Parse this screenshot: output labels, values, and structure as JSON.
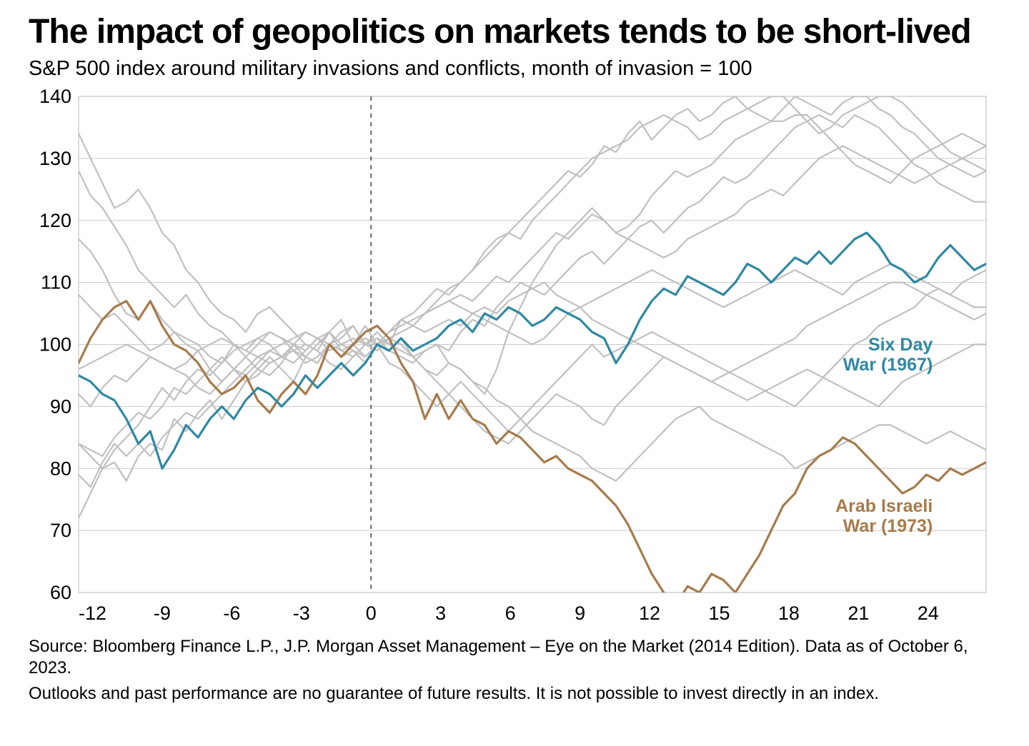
{
  "title": "The impact of geopolitics on markets tends to be short-lived",
  "subtitle": "S&P 500 index around military invasions and conflicts, month of invasion = 100",
  "source_line1": "Source: Bloomberg Finance L.P., J.P. Morgan Asset Management – Eye on the Market (2014 Edition). Data as of October 6, 2023.",
  "source_line2": "Outlooks and past performance are no guarantee of future results. It is not possible to invest directly in an index.",
  "chart": {
    "type": "line",
    "xlim": [
      -12.6,
      26.5
    ],
    "ylim": [
      60,
      140
    ],
    "xticks": [
      -12,
      -9,
      -6,
      -3,
      0,
      3,
      6,
      9,
      12,
      15,
      18,
      21,
      24
    ],
    "yticks": [
      60,
      70,
      80,
      90,
      100,
      110,
      120,
      130,
      140
    ],
    "tick_fontsize": 27,
    "title_fontsize": 48,
    "subtitle_fontsize": 29,
    "source_fontsize": 24,
    "background_color": "#ffffff",
    "plot_border_color": "#b8b8b8",
    "grid_color": "#c9c9c9",
    "zero_line_color": "#666666",
    "zero_line_dash": "6,6",
    "grey_line_color": "#c0c0c0",
    "grey_line_width": 2.2,
    "hl_line_width": 3.2,
    "series_six_day": {
      "color": "#2f88a3",
      "label": "Six Day\nWar (1967)",
      "label_pos": {
        "x": 24.2,
        "y": 99
      },
      "values": [
        95,
        94,
        92,
        91,
        88,
        84,
        86,
        80,
        83,
        87,
        85,
        88,
        90,
        88,
        91,
        93,
        92,
        90,
        92,
        95,
        93,
        95,
        97,
        95,
        97,
        100,
        99,
        101,
        99,
        100,
        101,
        103,
        104,
        102,
        105,
        104,
        106,
        105,
        103,
        104,
        106,
        105,
        104,
        102,
        101,
        97,
        100,
        104,
        107,
        109,
        108,
        111,
        110,
        109,
        108,
        110,
        113,
        112,
        110,
        112,
        114,
        113,
        115,
        113,
        115,
        117,
        118,
        116,
        113,
        112,
        110,
        111,
        114,
        116,
        114,
        112,
        113
      ]
    },
    "series_arab_israeli": {
      "color": "#a77b4b",
      "label": "Arab Israeli\nWar (1973)",
      "label_pos": {
        "x": 24.2,
        "y": 73
      },
      "values": [
        97,
        101,
        104,
        106,
        107,
        104,
        107,
        103,
        100,
        99,
        97,
        94,
        92,
        93,
        95,
        91,
        89,
        92,
        94,
        92,
        95,
        100,
        98,
        100,
        102,
        103,
        101,
        97,
        94,
        88,
        92,
        88,
        91,
        88,
        87,
        84,
        86,
        85,
        83,
        81,
        82,
        80,
        79,
        78,
        76,
        74,
        71,
        67,
        63,
        60,
        58,
        61,
        60,
        63,
        62,
        60,
        63,
        66,
        70,
        74,
        76,
        80,
        82,
        83,
        85,
        84,
        82,
        80,
        78,
        76,
        77,
        79,
        78,
        80,
        79,
        80,
        81
      ]
    },
    "grey_series": [
      [
        117,
        115,
        112,
        108,
        105,
        104,
        107,
        104,
        102,
        100,
        99,
        96,
        94,
        96,
        98,
        96,
        95,
        97,
        100,
        98,
        97,
        100,
        101,
        103,
        100,
        102,
        100,
        104,
        105,
        107,
        109,
        108,
        110,
        112,
        115,
        117,
        118,
        120,
        122,
        124,
        126,
        128,
        127,
        129,
        132,
        131,
        134,
        136,
        133,
        135,
        137,
        138,
        136,
        137,
        139,
        140,
        138,
        137,
        136,
        138,
        140,
        139,
        138,
        137,
        139,
        140,
        140,
        138,
        137,
        135,
        134,
        132,
        130,
        129,
        128,
        127,
        128
      ],
      [
        72,
        76,
        80,
        81,
        78,
        82,
        84,
        83,
        88,
        86,
        89,
        91,
        88,
        91,
        94,
        96,
        98,
        96,
        94,
        98,
        97,
        100,
        98,
        99,
        97,
        100,
        102,
        104,
        103,
        105,
        107,
        109,
        110,
        112,
        114,
        116,
        118,
        117,
        120,
        122,
        124,
        126,
        128,
        130,
        131,
        132,
        133,
        135,
        136,
        137,
        136,
        135,
        133,
        134,
        136,
        137,
        138,
        139,
        140,
        140,
        138,
        136,
        134,
        135,
        137,
        138,
        139,
        140,
        140,
        139,
        137,
        135,
        133,
        131,
        130,
        129,
        128
      ],
      [
        84,
        82,
        80,
        83,
        85,
        87,
        90,
        93,
        91,
        94,
        96,
        95,
        97,
        100,
        99,
        101,
        100,
        98,
        97,
        99,
        101,
        100,
        102,
        103,
        100,
        101,
        99,
        98,
        97,
        99,
        100,
        97,
        96,
        94,
        92,
        96,
        102,
        106,
        110,
        113,
        116,
        118,
        120,
        122,
        120,
        118,
        119,
        121,
        124,
        126,
        128,
        127,
        128,
        129,
        131,
        133,
        134,
        135,
        136,
        136,
        137,
        137,
        135,
        133,
        131,
        129,
        128,
        127,
        126,
        128,
        130,
        131,
        132,
        133,
        134,
        133,
        132
      ],
      [
        134,
        130,
        126,
        122,
        123,
        125,
        122,
        118,
        116,
        112,
        110,
        107,
        105,
        104,
        102,
        105,
        106,
        104,
        102,
        100,
        99,
        102,
        104,
        100,
        103,
        100,
        99,
        101,
        98,
        99,
        100,
        99,
        102,
        104,
        103,
        106,
        108,
        110,
        109,
        108,
        110,
        112,
        114,
        115,
        113,
        115,
        117,
        119,
        120,
        118,
        120,
        122,
        123,
        125,
        127,
        126,
        127,
        129,
        131,
        133,
        135,
        136,
        137,
        136,
        135,
        137,
        136,
        135,
        133,
        131,
        129,
        128,
        126,
        125,
        124,
        123,
        123
      ],
      [
        84,
        83,
        82,
        85,
        87,
        89,
        88,
        90,
        93,
        92,
        94,
        96,
        98,
        96,
        94,
        95,
        97,
        98,
        99,
        97,
        98,
        100,
        99,
        98,
        100,
        100,
        101,
        102,
        103,
        102,
        103,
        104,
        103,
        105,
        106,
        105,
        107,
        108,
        109,
        110,
        108,
        107,
        106,
        104,
        103,
        102,
        101,
        100,
        99,
        98,
        97,
        96,
        95,
        94,
        95,
        96,
        97,
        98,
        99,
        100,
        101,
        103,
        104,
        105,
        106,
        107,
        108,
        109,
        110,
        110,
        109,
        108,
        107,
        106,
        105,
        104,
        105
      ],
      [
        128,
        124,
        122,
        119,
        116,
        112,
        110,
        108,
        106,
        108,
        105,
        103,
        102,
        100,
        98,
        100,
        102,
        101,
        99,
        98,
        100,
        102,
        99,
        100,
        98,
        100,
        97,
        96,
        94,
        92,
        90,
        92,
        94,
        92,
        90,
        88,
        86,
        88,
        90,
        92,
        94,
        96,
        98,
        100,
        98,
        99,
        100,
        101,
        102,
        101,
        100,
        99,
        98,
        97,
        96,
        95,
        94,
        93,
        92,
        91,
        90,
        92,
        94,
        96,
        98,
        100,
        101,
        103,
        104,
        105,
        106,
        108,
        109,
        108,
        107,
        106,
        106
      ],
      [
        92,
        90,
        93,
        95,
        94,
        96,
        98,
        97,
        96,
        95,
        93,
        92,
        94,
        96,
        95,
        97,
        99,
        98,
        100,
        102,
        101,
        99,
        100,
        101,
        100,
        99,
        101,
        100,
        98,
        96,
        94,
        92,
        90,
        88,
        86,
        85,
        84,
        86,
        88,
        90,
        92,
        91,
        90,
        88,
        87,
        90,
        92,
        94,
        96,
        98,
        97,
        96,
        95,
        94,
        93,
        92,
        91,
        92,
        93,
        94,
        95,
        96,
        95,
        94,
        93,
        92,
        91,
        90,
        92,
        94,
        95,
        96,
        97,
        98,
        99,
        100,
        100
      ],
      [
        79,
        77,
        81,
        84,
        82,
        84,
        82,
        85,
        87,
        89,
        88,
        90,
        92,
        94,
        96,
        98,
        97,
        98,
        99,
        100,
        99,
        97,
        96,
        98,
        100,
        101,
        100,
        99,
        98,
        96,
        95,
        97,
        96,
        94,
        93,
        91,
        90,
        88,
        86,
        85,
        84,
        83,
        82,
        80,
        79,
        78,
        80,
        82,
        84,
        86,
        88,
        89,
        90,
        88,
        87,
        86,
        85,
        84,
        83,
        82,
        80,
        81,
        82,
        83,
        84,
        85,
        86,
        87,
        87,
        86,
        85,
        84,
        85,
        86,
        85,
        84,
        83
      ],
      [
        108,
        106,
        104,
        105,
        103,
        101,
        99,
        100,
        102,
        101,
        100,
        98,
        97,
        99,
        100,
        101,
        102,
        101,
        100,
        99,
        101,
        102,
        100,
        99,
        98,
        100,
        102,
        104,
        103,
        105,
        106,
        107,
        108,
        107,
        109,
        111,
        110,
        112,
        114,
        116,
        118,
        117,
        119,
        121,
        120,
        118,
        117,
        116,
        115,
        114,
        115,
        117,
        118,
        119,
        120,
        121,
        123,
        124,
        125,
        124,
        126,
        128,
        130,
        131,
        132,
        131,
        130,
        129,
        128,
        127,
        126,
        127,
        128,
        129,
        130,
        131,
        132
      ],
      [
        96,
        97,
        98,
        99,
        100,
        99,
        98,
        97,
        96,
        97,
        99,
        100,
        101,
        100,
        99,
        98,
        99,
        100,
        101,
        102,
        101,
        100,
        99,
        100,
        101,
        100,
        102,
        103,
        104,
        105,
        106,
        107,
        106,
        105,
        104,
        103,
        102,
        101,
        100,
        101,
        103,
        105,
        106,
        107,
        108,
        109,
        110,
        111,
        112,
        111,
        110,
        109,
        108,
        107,
        106,
        107,
        108,
        109,
        110,
        111,
        112,
        111,
        110,
        109,
        108,
        110,
        111,
        112,
        113,
        112,
        111,
        110,
        109,
        108,
        110,
        111,
        112
      ]
    ]
  }
}
